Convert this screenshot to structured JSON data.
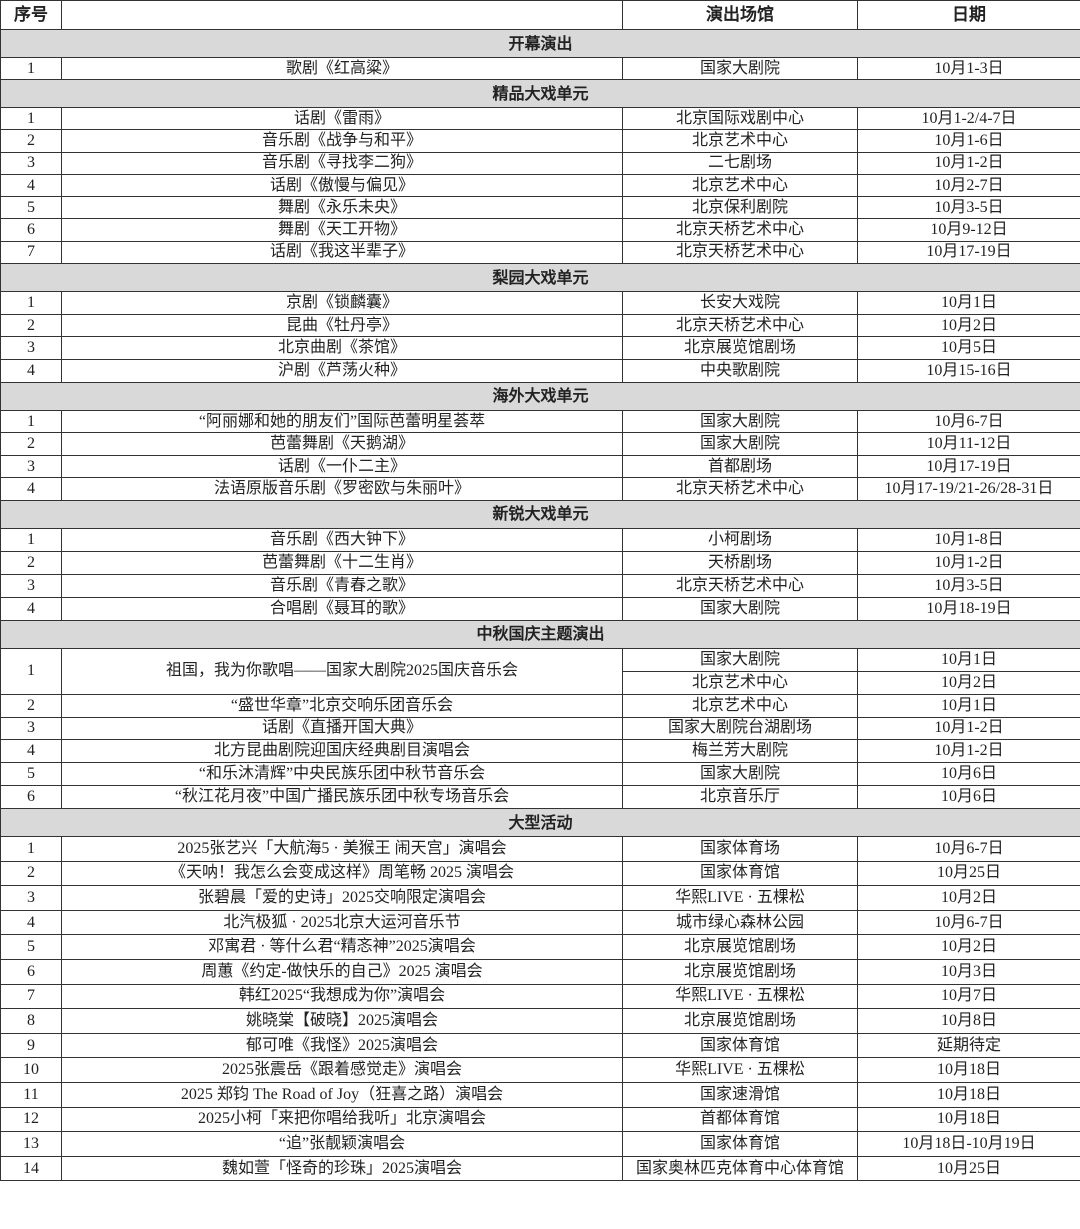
{
  "header": {
    "no": "序号",
    "program": "",
    "venue": "演出场馆",
    "date": "日期"
  },
  "sections": [
    {
      "title": "开幕演出",
      "rows": [
        {
          "no": "1",
          "program": "歌剧《红高粱》",
          "venues": [
            {
              "venue": "国家大剧院",
              "date": "10月1-3日"
            }
          ]
        }
      ]
    },
    {
      "title": "精品大戏单元",
      "rows": [
        {
          "no": "1",
          "program": "话剧《雷雨》",
          "venues": [
            {
              "venue": "北京国际戏剧中心",
              "date": "10月1-2/4-7日"
            }
          ]
        },
        {
          "no": "2",
          "program": "音乐剧《战争与和平》",
          "venues": [
            {
              "venue": "北京艺术中心",
              "date": "10月1-6日"
            }
          ]
        },
        {
          "no": "3",
          "program": "音乐剧《寻找李二狗》",
          "venues": [
            {
              "venue": "二七剧场",
              "date": "10月1-2日"
            }
          ]
        },
        {
          "no": "4",
          "program": "话剧《傲慢与偏见》",
          "venues": [
            {
              "venue": "北京艺术中心",
              "date": "10月2-7日"
            }
          ]
        },
        {
          "no": "5",
          "program": "舞剧《永乐未央》",
          "venues": [
            {
              "venue": "北京保利剧院",
              "date": "10月3-5日"
            }
          ]
        },
        {
          "no": "6",
          "program": "舞剧《天工开物》",
          "venues": [
            {
              "venue": "北京天桥艺术中心",
              "date": "10月9-12日"
            }
          ]
        },
        {
          "no": "7",
          "program": "话剧《我这半辈子》",
          "venues": [
            {
              "venue": "北京天桥艺术中心",
              "date": "10月17-19日"
            }
          ]
        }
      ]
    },
    {
      "title": "梨园大戏单元",
      "rows": [
        {
          "no": "1",
          "program": "京剧《锁麟囊》",
          "venues": [
            {
              "venue": "长安大戏院",
              "date": "10月1日"
            }
          ]
        },
        {
          "no": "2",
          "program": "昆曲《牡丹亭》",
          "venues": [
            {
              "venue": "北京天桥艺术中心",
              "date": "10月2日"
            }
          ]
        },
        {
          "no": "3",
          "program": "北京曲剧《茶馆》",
          "venues": [
            {
              "venue": "北京展览馆剧场",
              "date": "10月5日"
            }
          ]
        },
        {
          "no": "4",
          "program": "沪剧《芦荡火种》",
          "venues": [
            {
              "venue": "中央歌剧院",
              "date": "10月15-16日"
            }
          ]
        }
      ]
    },
    {
      "title": "海外大戏单元",
      "rows": [
        {
          "no": "1",
          "program": "“阿丽娜和她的朋友们”国际芭蕾明星荟萃",
          "venues": [
            {
              "venue": "国家大剧院",
              "date": "10月6-7日"
            }
          ]
        },
        {
          "no": "2",
          "program": "芭蕾舞剧《天鹅湖》",
          "venues": [
            {
              "venue": "国家大剧院",
              "date": "10月11-12日"
            }
          ]
        },
        {
          "no": "3",
          "program": "话剧《一仆二主》",
          "venues": [
            {
              "venue": "首都剧场",
              "date": "10月17-19日"
            }
          ]
        },
        {
          "no": "4",
          "program": "法语原版音乐剧《罗密欧与朱丽叶》",
          "venues": [
            {
              "venue": "北京天桥艺术中心",
              "date": "10月17-19/21-26/28-31日"
            }
          ]
        }
      ]
    },
    {
      "title": "新锐大戏单元",
      "rows": [
        {
          "no": "1",
          "program": "音乐剧《西大钟下》",
          "venues": [
            {
              "venue": "小柯剧场",
              "date": "10月1-8日"
            }
          ]
        },
        {
          "no": "2",
          "program": "芭蕾舞剧《十二生肖》",
          "venues": [
            {
              "venue": "天桥剧场",
              "date": "10月1-2日"
            }
          ]
        },
        {
          "no": "3",
          "program": "音乐剧《青春之歌》",
          "venues": [
            {
              "venue": "北京天桥艺术中心",
              "date": "10月3-5日"
            }
          ]
        },
        {
          "no": "4",
          "program": "合唱剧《聂耳的歌》",
          "venues": [
            {
              "venue": "国家大剧院",
              "date": "10月18-19日"
            }
          ]
        }
      ]
    },
    {
      "title": "中秋国庆主题演出",
      "rows": [
        {
          "no": "1",
          "program": "祖国，我为你歌唱——国家大剧院2025国庆音乐会",
          "venues": [
            {
              "venue": "国家大剧院",
              "date": "10月1日"
            },
            {
              "venue": "北京艺术中心",
              "date": "10月2日"
            }
          ]
        },
        {
          "no": "2",
          "program": "“盛世华章”北京交响乐团音乐会",
          "venues": [
            {
              "venue": "北京艺术中心",
              "date": "10月1日"
            }
          ]
        },
        {
          "no": "3",
          "program": "话剧《直播开国大典》",
          "venues": [
            {
              "venue": "国家大剧院台湖剧场",
              "date": "10月1-2日"
            }
          ]
        },
        {
          "no": "4",
          "program": "北方昆曲剧院迎国庆经典剧目演唱会",
          "venues": [
            {
              "venue": "梅兰芳大剧院",
              "date": "10月1-2日"
            }
          ]
        },
        {
          "no": "5",
          "program": "“和乐沐清辉”中央民族乐团中秋节音乐会",
          "venues": [
            {
              "venue": "国家大剧院",
              "date": "10月6日"
            }
          ]
        },
        {
          "no": "6",
          "program": "“秋江花月夜”中国广播民族乐团中秋专场音乐会",
          "venues": [
            {
              "venue": "北京音乐厅",
              "date": "10月6日"
            }
          ]
        }
      ]
    },
    {
      "title": "大型活动",
      "rows": [
        {
          "no": "1",
          "program": "2025张艺兴「大航海5 · 美猴王 闹天宫」演唱会",
          "venues": [
            {
              "venue": "国家体育场",
              "date": "10月6-7日"
            }
          ]
        },
        {
          "no": "2",
          "program": "《天呐！我怎么会变成这样》周笔畅 2025 演唱会",
          "venues": [
            {
              "venue": "国家体育馆",
              "date": "10月25日"
            }
          ]
        },
        {
          "no": "3",
          "program": "张碧晨「爱的史诗」2025交响限定演唱会",
          "venues": [
            {
              "venue": "华熙LIVE · 五棵松",
              "date": "10月2日"
            }
          ]
        },
        {
          "no": "4",
          "program": "北汽极狐 · 2025北京大运河音乐节",
          "venues": [
            {
              "venue": "城市绿心森林公园",
              "date": "10月6-7日"
            }
          ]
        },
        {
          "no": "5",
          "program": "邓寓君 · 等什么君“精忞神”2025演唱会",
          "venues": [
            {
              "venue": "北京展览馆剧场",
              "date": "10月2日"
            }
          ]
        },
        {
          "no": "6",
          "program": "周蕙《约定-做快乐的自己》2025 演唱会",
          "venues": [
            {
              "venue": "北京展览馆剧场",
              "date": "10月3日"
            }
          ]
        },
        {
          "no": "7",
          "program": "韩红2025“我想成为你”演唱会",
          "venues": [
            {
              "venue": "华熙LIVE · 五棵松",
              "date": "10月7日"
            }
          ]
        },
        {
          "no": "8",
          "program": "姚晓棠【破晓】2025演唱会",
          "venues": [
            {
              "venue": "北京展览馆剧场",
              "date": "10月8日"
            }
          ]
        },
        {
          "no": "9",
          "program": "郁可唯《我怪》2025演唱会",
          "venues": [
            {
              "venue": "国家体育馆",
              "date": "延期待定"
            }
          ]
        },
        {
          "no": "10",
          "program": "2025张震岳《跟着感觉走》演唱会",
          "venues": [
            {
              "venue": "华熙LIVE · 五棵松",
              "date": "10月18日"
            }
          ]
        },
        {
          "no": "11",
          "program": "2025 郑钧 The Road of Joy（狂喜之路）演唱会",
          "venues": [
            {
              "venue": "国家速滑馆",
              "date": "10月18日"
            }
          ]
        },
        {
          "no": "12",
          "program": "2025小柯「来把你唱给我听」北京演唱会",
          "venues": [
            {
              "venue": "首都体育馆",
              "date": "10月18日"
            }
          ]
        },
        {
          "no": "13",
          "program": "“追”张靓颖演唱会",
          "venues": [
            {
              "venue": "国家体育馆",
              "date": "10月18日-10月19日"
            }
          ]
        },
        {
          "no": "14",
          "program": "魏如萱「怪奇的珍珠」2025演唱会",
          "venues": [
            {
              "venue": "国家奥林匹克体育中心体育馆",
              "date": "10月25日"
            }
          ]
        }
      ]
    }
  ]
}
